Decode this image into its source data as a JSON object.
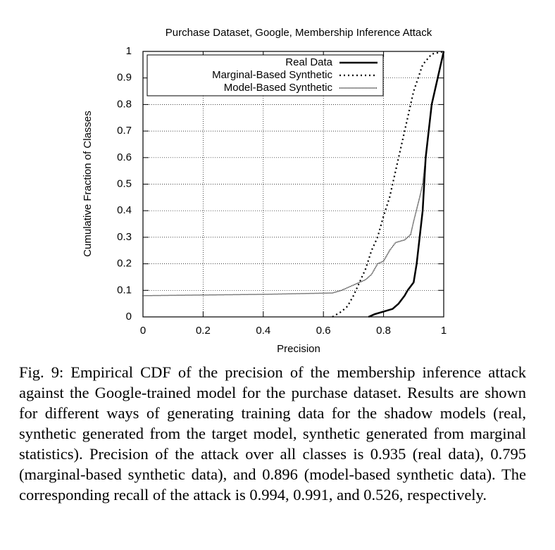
{
  "chart_data": {
    "type": "line",
    "title": "Purchase Dataset, Google, Membership Inference Attack",
    "xlabel": "Precision",
    "ylabel": "Cumulative Fraction of Classes",
    "xlim": [
      0,
      1
    ],
    "ylim": [
      0,
      1
    ],
    "xticks": [
      0,
      0.2,
      0.4,
      0.6,
      0.8,
      1
    ],
    "yticks": [
      0,
      0.1,
      0.2,
      0.3,
      0.4,
      0.5,
      0.6,
      0.7,
      0.8,
      0.9,
      1
    ],
    "grid": true,
    "legend": "upper left",
    "series": [
      {
        "name": "Real Data",
        "color": "#000000",
        "x": [
          0.75,
          0.77,
          0.8,
          0.83,
          0.85,
          0.87,
          0.88,
          0.9,
          0.91,
          0.92,
          0.93,
          0.935,
          0.94,
          0.95,
          0.96,
          0.98,
          0.99,
          1
        ],
        "values": [
          0,
          0.01,
          0.02,
          0.03,
          0.05,
          0.08,
          0.1,
          0.13,
          0.2,
          0.3,
          0.4,
          0.5,
          0.6,
          0.7,
          0.8,
          0.9,
          0.95,
          1
        ]
      },
      {
        "name": "Marginal-Based Synthetic",
        "color": "#000000",
        "x": [
          0.63,
          0.66,
          0.68,
          0.7,
          0.72,
          0.74,
          0.76,
          0.78,
          0.8,
          0.82,
          0.84,
          0.86,
          0.88,
          0.9,
          0.93,
          0.96,
          1
        ],
        "values": [
          0,
          0.02,
          0.04,
          0.08,
          0.13,
          0.18,
          0.25,
          0.3,
          0.38,
          0.45,
          0.55,
          0.65,
          0.75,
          0.85,
          0.95,
          0.99,
          1
        ]
      },
      {
        "name": "Model-Based Synthetic",
        "color": "#000000",
        "x": [
          0,
          0.4,
          0.63,
          0.66,
          0.7,
          0.74,
          0.76,
          0.78,
          0.8,
          0.82,
          0.84,
          0.87,
          0.89,
          0.9,
          0.92,
          0.93,
          0.94,
          0.95,
          0.96,
          0.98,
          1
        ],
        "values": [
          0.08,
          0.085,
          0.09,
          0.1,
          0.12,
          0.14,
          0.16,
          0.2,
          0.21,
          0.25,
          0.28,
          0.29,
          0.31,
          0.36,
          0.45,
          0.5,
          0.6,
          0.7,
          0.8,
          0.9,
          1
        ]
      }
    ]
  },
  "caption": "Fig. 9: Empirical CDF of the precision of the membership inference attack against the Google-trained model for the purchase dataset. Results are shown for different ways of generating training data for the shadow models (real, synthetic generated from the target model, synthetic generated from marginal statistics). Precision of the attack over all classes is 0.935 (real data), 0.795 (marginal-based synthetic data), and 0.896 (model-based synthetic data). The corresponding recall of the attack is 0.994, 0.991, and 0.526, respectively."
}
